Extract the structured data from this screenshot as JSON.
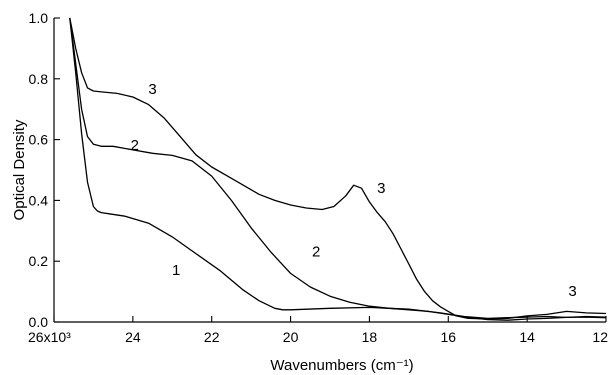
{
  "chart_data": {
    "type": "line",
    "xlabel": "Wavenumbers (cm⁻¹)",
    "ylabel": "Optical Density",
    "x_reversed": true,
    "xlim": [
      26000,
      12000
    ],
    "ylim": [
      0,
      1.0
    ],
    "x_ticks": [
      {
        "value": 26000,
        "label": "26x10³"
      },
      {
        "value": 24000,
        "label": "24"
      },
      {
        "value": 22000,
        "label": "22"
      },
      {
        "value": 20000,
        "label": "20"
      },
      {
        "value": 18000,
        "label": "18"
      },
      {
        "value": 16000,
        "label": "16"
      },
      {
        "value": 14000,
        "label": "14"
      },
      {
        "value": 12000,
        "label": "12"
      }
    ],
    "y_ticks": [
      {
        "value": 0.0,
        "label": "0.0"
      },
      {
        "value": 0.2,
        "label": "0.2"
      },
      {
        "value": 0.4,
        "label": "0.4"
      },
      {
        "value": 0.6,
        "label": "0.6"
      },
      {
        "value": 0.8,
        "label": "0.8"
      },
      {
        "value": 1.0,
        "label": "1.0"
      }
    ],
    "grid": false,
    "series": [
      {
        "name": "1",
        "x": [
          25600,
          25450,
          25300,
          25150,
          25000,
          24900,
          24800,
          24600,
          24200,
          23600,
          23000,
          22400,
          21800,
          21200,
          20800,
          20400,
          20200,
          20000,
          19000,
          18000,
          17000,
          16200,
          15600,
          15000,
          14500,
          14000,
          13500,
          13000,
          12500,
          12000
        ],
        "values": [
          1.0,
          0.82,
          0.62,
          0.46,
          0.38,
          0.365,
          0.36,
          0.356,
          0.348,
          0.325,
          0.28,
          0.225,
          0.17,
          0.105,
          0.07,
          0.045,
          0.04,
          0.04,
          0.045,
          0.048,
          0.042,
          0.03,
          0.018,
          0.012,
          0.014,
          0.016,
          0.018,
          0.015,
          0.016,
          0.014
        ]
      },
      {
        "name": "2",
        "x": [
          25600,
          25450,
          25300,
          25150,
          25000,
          24800,
          24500,
          24000,
          23500,
          23000,
          22500,
          22000,
          21500,
          21000,
          20500,
          20000,
          19500,
          19000,
          18500,
          18000,
          17500,
          17000,
          16500,
          16000,
          15500,
          15000,
          14500,
          14000,
          13500,
          13000,
          12500,
          12000
        ],
        "values": [
          1.0,
          0.85,
          0.7,
          0.61,
          0.585,
          0.578,
          0.578,
          0.566,
          0.555,
          0.548,
          0.53,
          0.48,
          0.4,
          0.31,
          0.23,
          0.16,
          0.115,
          0.085,
          0.065,
          0.052,
          0.045,
          0.04,
          0.035,
          0.025,
          0.015,
          0.008,
          0.006,
          0.01,
          0.012,
          0.015,
          0.018,
          0.016
        ]
      },
      {
        "name": "3",
        "x": [
          25600,
          25450,
          25300,
          25150,
          25000,
          24800,
          24400,
          24000,
          23600,
          23200,
          22800,
          22400,
          22000,
          21600,
          21200,
          20800,
          20400,
          20000,
          19600,
          19200,
          18900,
          18600,
          18400,
          18200,
          18000,
          17800,
          17600,
          17400,
          17200,
          17000,
          16800,
          16600,
          16400,
          16200,
          16000,
          15800,
          15500,
          15000,
          14500,
          14000,
          13500,
          13000,
          12500,
          12000
        ],
        "values": [
          1.0,
          0.9,
          0.82,
          0.77,
          0.76,
          0.757,
          0.752,
          0.74,
          0.715,
          0.67,
          0.61,
          0.55,
          0.51,
          0.48,
          0.45,
          0.42,
          0.4,
          0.385,
          0.375,
          0.37,
          0.38,
          0.415,
          0.45,
          0.44,
          0.395,
          0.36,
          0.33,
          0.29,
          0.24,
          0.19,
          0.14,
          0.1,
          0.07,
          0.05,
          0.035,
          0.02,
          0.012,
          0.01,
          0.012,
          0.02,
          0.025,
          0.035,
          0.03,
          0.028
        ]
      }
    ],
    "curve_labels": [
      {
        "text": "1",
        "x": 22900,
        "y": 0.155
      },
      {
        "text": "2",
        "x": 19350,
        "y": 0.215
      },
      {
        "text": "2",
        "x": 23950,
        "y": 0.565
      },
      {
        "text": "3",
        "x": 23500,
        "y": 0.75
      },
      {
        "text": "3",
        "x": 17700,
        "y": 0.425
      },
      {
        "text": "3",
        "x": 12850,
        "y": 0.085
      }
    ]
  }
}
